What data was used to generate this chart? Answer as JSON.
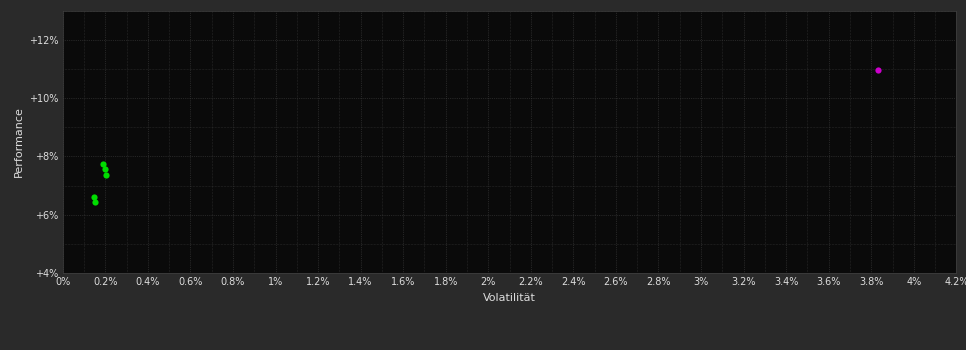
{
  "background_color": "#2a2a2a",
  "plot_bg_color": "#0a0a0a",
  "grid_color": "#404040",
  "xlabel": "Volatilität",
  "ylabel": "Performance",
  "xlim": [
    0.0,
    0.042
  ],
  "ylim": [
    0.04,
    0.13
  ],
  "yticks": [
    0.04,
    0.06,
    0.08,
    0.1,
    0.12
  ],
  "ytick_labels": [
    "+4%",
    "+6%",
    "+8%",
    "+10%",
    "+12%"
  ],
  "xticks": [
    0.0,
    0.002,
    0.004,
    0.006,
    0.008,
    0.01,
    0.012,
    0.014,
    0.016,
    0.018,
    0.02,
    0.022,
    0.024,
    0.026,
    0.028,
    0.03,
    0.032,
    0.034,
    0.036,
    0.038,
    0.04,
    0.042
  ],
  "xtick_labels": [
    "0%",
    "0.2%",
    "0.4%",
    "0.6%",
    "0.8%",
    "1%",
    "1.2%",
    "1.4%",
    "1.6%",
    "1.8%",
    "2%",
    "2.2%",
    "2.4%",
    "2.6%",
    "2.8%",
    "3%",
    "3.2%",
    "3.4%",
    "3.6%",
    "3.8%",
    "4%",
    "4.2%"
  ],
  "green_points": [
    [
      0.0019,
      0.0775
    ],
    [
      0.002,
      0.0755
    ],
    [
      0.00205,
      0.0735
    ],
    [
      0.00145,
      0.066
    ],
    [
      0.0015,
      0.0645
    ]
  ],
  "magenta_points": [
    [
      0.0383,
      0.1095
    ]
  ],
  "green_color": "#00dd00",
  "magenta_color": "#cc00cc",
  "point_size": 20,
  "font_color": "#dddddd",
  "tick_fontsize": 7,
  "axis_label_fontsize": 8
}
